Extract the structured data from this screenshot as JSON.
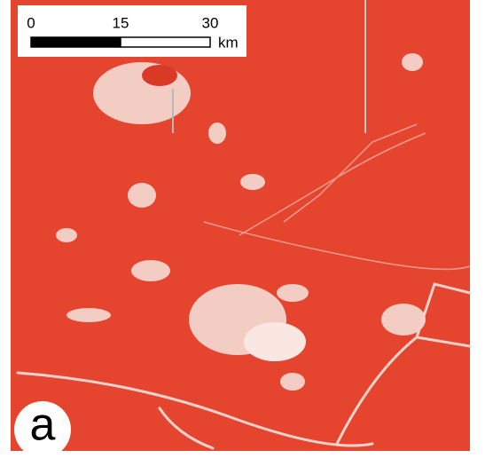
{
  "scale_bar": {
    "ticks": [
      0,
      15,
      30
    ],
    "unit": "km"
  },
  "panel_label": "a"
}
